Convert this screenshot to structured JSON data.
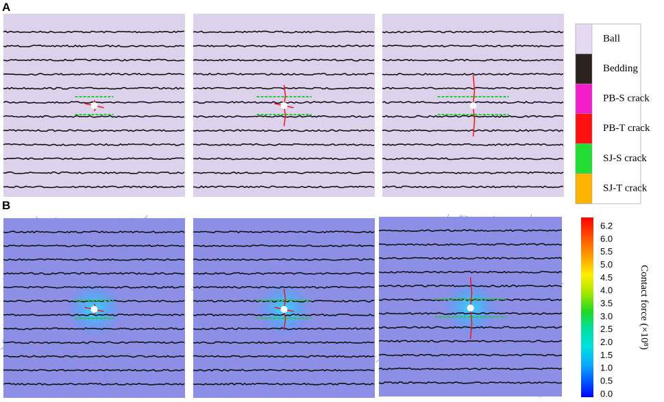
{
  "panels": [
    {
      "label": "A"
    },
    {
      "label": "B"
    }
  ],
  "legend": {
    "items": [
      {
        "name": "Ball",
        "color": "#e6d9f2"
      },
      {
        "name": "Bedding",
        "color": "#2b2220"
      },
      {
        "name": "PB-S crack",
        "color": "#f21fc8"
      },
      {
        "name": "PB-T crack",
        "color": "#ff1010"
      },
      {
        "name": "SJ-S crack",
        "color": "#22dd33"
      },
      {
        "name": "SJ-T crack",
        "color": "#ffb400"
      }
    ]
  },
  "colorbar": {
    "title": "Contact force (×10⁸)",
    "labels": [
      "6.2",
      "6.0",
      "5.5",
      "5.0",
      "4.5",
      "4.0",
      "3.5",
      "3.0",
      "2.5",
      "2.0",
      "1.5",
      "1.0",
      "0.5",
      "0.0"
    ]
  }
}
